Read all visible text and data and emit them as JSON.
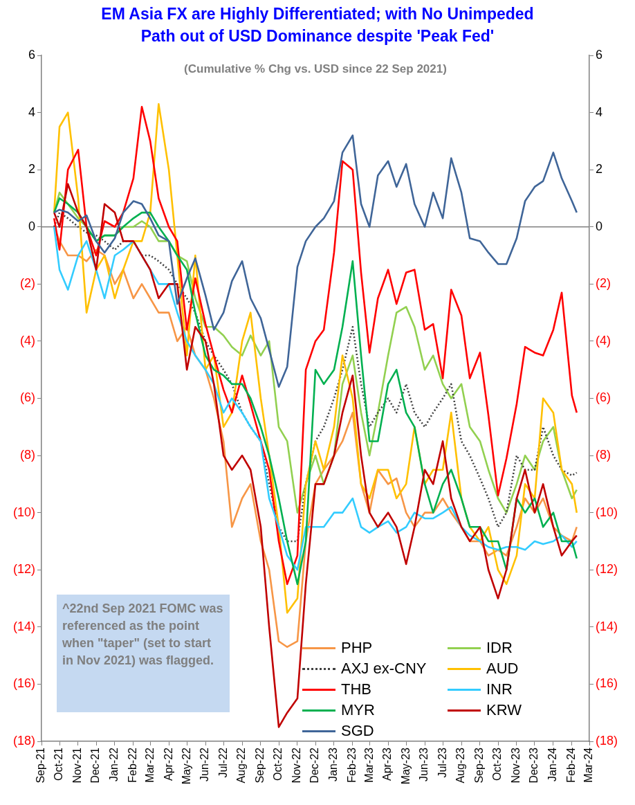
{
  "chart_data": {
    "type": "line",
    "title": "EM Asia FX are Highly Differentiated; with No Unimpeded Path out of USD Dominance despite 'Peak Fed'",
    "subtitle": "(Cumulative % Chg vs. USD since 22 Sep 2021)",
    "annotations": [
      "^22nd Sep 2021 FOMC was referenced as the point when \"taper\" (set to start in Nov 2021) was flagged."
    ],
    "marker": "none",
    "grid": false,
    "legend": "bottom right",
    "xlim": [
      "2021-09-01",
      "2024-03-01"
    ],
    "xticks": [
      {
        "value": "2021-09-01",
        "label": "Sep-21"
      },
      {
        "value": "2021-10-01",
        "label": "Oct-21"
      },
      {
        "value": "2021-11-01",
        "label": "Nov-21"
      },
      {
        "value": "2021-12-01",
        "label": "Dec-21"
      },
      {
        "value": "2022-01-01",
        "label": "Jan-22"
      },
      {
        "value": "2022-02-01",
        "label": "Feb-22"
      },
      {
        "value": "2022-03-01",
        "label": "Mar-22"
      },
      {
        "value": "2022-04-01",
        "label": "Apr-22"
      },
      {
        "value": "2022-05-01",
        "label": "May-22"
      },
      {
        "value": "2022-06-01",
        "label": "Jun-22"
      },
      {
        "value": "2022-07-01",
        "label": "Jul-22"
      },
      {
        "value": "2022-08-01",
        "label": "Aug-22"
      },
      {
        "value": "2022-09-01",
        "label": "Sep-22"
      },
      {
        "value": "2022-10-01",
        "label": "Oct-22"
      },
      {
        "value": "2022-11-01",
        "label": "Nov-22"
      },
      {
        "value": "2022-12-01",
        "label": "Dec-22"
      },
      {
        "value": "2023-01-01",
        "label": "Jan-23"
      },
      {
        "value": "2023-02-01",
        "label": "Feb-23"
      },
      {
        "value": "2023-03-01",
        "label": "Mar-23"
      },
      {
        "value": "2023-04-01",
        "label": "Apr-23"
      },
      {
        "value": "2023-05-01",
        "label": "May-23"
      },
      {
        "value": "2023-06-01",
        "label": "Jun-23"
      },
      {
        "value": "2023-07-01",
        "label": "Jul-23"
      },
      {
        "value": "2023-08-01",
        "label": "Aug-23"
      },
      {
        "value": "2023-09-01",
        "label": "Sep-23"
      },
      {
        "value": "2023-10-01",
        "label": "Oct-23"
      },
      {
        "value": "2023-11-01",
        "label": "Nov-23"
      },
      {
        "value": "2023-12-01",
        "label": "Dec-23"
      },
      {
        "value": "2024-01-01",
        "label": "Jan-24"
      },
      {
        "value": "2024-02-01",
        "label": "Feb-24"
      },
      {
        "value": "2024-03-01",
        "label": "Mar-24"
      }
    ],
    "ylim": [
      -18,
      6
    ],
    "yticks": [
      6,
      4,
      2,
      0,
      {
        "value": -2,
        "label": "(2)"
      },
      {
        "value": -4,
        "label": "(4)"
      },
      {
        "value": -6,
        "label": "(6)"
      },
      {
        "value": -8,
        "label": "(8)"
      },
      {
        "value": -10,
        "label": "(10)"
      },
      {
        "value": -12,
        "label": "(12)"
      },
      {
        "value": -14,
        "label": "(14)"
      },
      {
        "value": -16,
        "label": "(16)"
      },
      {
        "value": -18,
        "label": "(18)"
      }
    ],
    "y2lim": [
      -18,
      6
    ],
    "y2ticks": [
      6,
      4,
      2,
      0,
      {
        "value": -2,
        "label": "(2)"
      },
      {
        "value": -4,
        "label": "(4)"
      },
      {
        "value": -6,
        "label": "(6)"
      },
      {
        "value": -8,
        "label": "(8)"
      },
      {
        "value": -10,
        "label": "(10)"
      },
      {
        "value": -12,
        "label": "(12)"
      },
      {
        "value": -14,
        "label": "(14)"
      },
      {
        "value": -16,
        "label": "(16)"
      },
      {
        "value": -18,
        "label": "(18)"
      }
    ],
    "ref_lines": [
      {
        "axis": "y",
        "value": 0,
        "color": "#808080"
      }
    ],
    "x": [
      "2021-09-22",
      "2021-10-01",
      "2021-10-15",
      "2021-11-01",
      "2021-11-15",
      "2021-12-01",
      "2021-12-15",
      "2022-01-01",
      "2022-01-15",
      "2022-02-01",
      "2022-02-15",
      "2022-03-01",
      "2022-03-15",
      "2022-04-01",
      "2022-04-15",
      "2022-05-01",
      "2022-05-15",
      "2022-06-01",
      "2022-06-15",
      "2022-07-01",
      "2022-07-15",
      "2022-08-01",
      "2022-08-15",
      "2022-09-01",
      "2022-09-15",
      "2022-10-01",
      "2022-10-15",
      "2022-11-01",
      "2022-11-15",
      "2022-12-01",
      "2022-12-15",
      "2023-01-01",
      "2023-01-15",
      "2023-02-01",
      "2023-02-15",
      "2023-03-01",
      "2023-03-15",
      "2023-04-01",
      "2023-04-15",
      "2023-05-01",
      "2023-05-15",
      "2023-06-01",
      "2023-06-15",
      "2023-07-01",
      "2023-07-15",
      "2023-08-01",
      "2023-08-15",
      "2023-09-01",
      "2023-09-15",
      "2023-10-01",
      "2023-10-15",
      "2023-11-01",
      "2023-11-15",
      "2023-12-01",
      "2023-12-15",
      "2024-01-01",
      "2024-01-15",
      "2024-02-01",
      "2024-02-09"
    ],
    "series": [
      {
        "name": "PHP",
        "color": "#f79646",
        "values": [
          0,
          -0.5,
          -1.0,
          -1.0,
          -1.2,
          -0.8,
          -1.0,
          -2.0,
          -1.5,
          -2.5,
          -2.0,
          -2.5,
          -3.0,
          -3.0,
          -4.0,
          -3.5,
          -4.5,
          -5.0,
          -6.0,
          -7.5,
          -10.5,
          -9.5,
          -9.0,
          -11.0,
          -12.0,
          -14.5,
          -14.7,
          -14.5,
          -11.0,
          -9.0,
          -8.5,
          -8.0,
          -7.5,
          -6.5,
          -9.0,
          -10.0,
          -8.5,
          -9.0,
          -8.8,
          -10.0,
          -10.5,
          -10.0,
          -10.0,
          -9.5,
          -10.0,
          -10.5,
          -11.0,
          -11.0,
          -11.5,
          -11.3,
          -11.5,
          -10.5,
          -9.5,
          -10.0,
          -9.5,
          -10.5,
          -10.8,
          -11.0,
          -10.5
        ]
      },
      {
        "name": "IDR",
        "color": "#92d050",
        "values": [
          0.5,
          1.2,
          0.8,
          0.3,
          0,
          -0.5,
          -0.3,
          -0.3,
          0,
          0,
          0.2,
          0,
          -0.5,
          -0.5,
          -1.0,
          -1.2,
          -2.5,
          -3.5,
          -3.5,
          -3.8,
          -4.2,
          -4.5,
          -3.8,
          -4.5,
          -4.0,
          -7.0,
          -7.5,
          -10.0,
          -9.0,
          -8.0,
          -9.0,
          -8.0,
          -5.5,
          -4.5,
          -6.5,
          -8.0,
          -6.5,
          -4.5,
          -3.0,
          -2.8,
          -3.5,
          -5.0,
          -4.5,
          -5.5,
          -6.0,
          -5.5,
          -7.0,
          -7.5,
          -8.5,
          -9.5,
          -10.0,
          -9.0,
          -8.0,
          -8.5,
          -7.5,
          -7.0,
          -8.5,
          -9.5,
          -9.2
        ]
      },
      {
        "name": "AXJ ex-CNY",
        "color": "#404040",
        "line_style": "dotted",
        "values": [
          0,
          0.5,
          0.3,
          0,
          -0.2,
          -0.3,
          -0.5,
          -0.8,
          -0.5,
          -0.5,
          -1.0,
          -1.0,
          -1.2,
          -1.5,
          -2.0,
          -2.5,
          -3.0,
          -4.0,
          -4.5,
          -5.0,
          -5.5,
          -6.5,
          -7.0,
          -7.5,
          -9.0,
          -10.5,
          -11.0,
          -11.0,
          -9.0,
          -7.5,
          -7.0,
          -6.0,
          -5.0,
          -3.5,
          -5.5,
          -7.0,
          -6.5,
          -6.0,
          -6.5,
          -5.5,
          -6.5,
          -7.0,
          -6.5,
          -6.0,
          -5.5,
          -7.5,
          -8.0,
          -8.8,
          -9.5,
          -10.5,
          -10.0,
          -8.0,
          -8.5,
          -8.5,
          -7.0,
          -8.0,
          -8.5,
          -8.7,
          -8.6
        ]
      },
      {
        "name": "AUD",
        "color": "#ffc000",
        "values": [
          0.5,
          3.5,
          4.0,
          1.0,
          -3.0,
          -1.5,
          -1.0,
          -2.5,
          -1.5,
          -0.5,
          -0.5,
          0.5,
          4.3,
          2.0,
          -1.0,
          -4.5,
          -1.0,
          -5.0,
          -4.5,
          -7.0,
          -6.5,
          -4.0,
          -3.0,
          -6.0,
          -8.0,
          -10.5,
          -13.5,
          -13.0,
          -9.0,
          -7.5,
          -8.5,
          -7.0,
          -4.5,
          -6.0,
          -9.0,
          -9.5,
          -8.5,
          -8.5,
          -9.5,
          -9.0,
          -7.0,
          -9.0,
          -8.5,
          -8.5,
          -6.5,
          -9.5,
          -10.5,
          -11.0,
          -10.5,
          -12.0,
          -12.5,
          -11.5,
          -9.0,
          -9.5,
          -6.0,
          -6.5,
          -8.5,
          -9.0,
          -10.0
        ]
      },
      {
        "name": "THB",
        "color": "#ff0000",
        "values": [
          0.3,
          -0.8,
          2.0,
          2.7,
          0.0,
          -1.0,
          0.2,
          0,
          0.5,
          1.7,
          4.2,
          3.0,
          1.0,
          0,
          -0.5,
          -3.6,
          -1.8,
          -3.4,
          -4.5,
          -5.7,
          -6.5,
          -5.2,
          -6.2,
          -7.5,
          -8.5,
          -11.0,
          -12.5,
          -11.5,
          -5.0,
          -4.0,
          -3.6,
          -0.9,
          2.3,
          2.0,
          -1.6,
          -4.4,
          -2.5,
          -1.5,
          -2.7,
          -1.6,
          -1.5,
          -3.6,
          -3.4,
          -5.3,
          -2.2,
          -3.1,
          -5.3,
          -4.4,
          -6.6,
          -9.4,
          -8.1,
          -6.2,
          -4.2,
          -4.4,
          -4.5,
          -3.6,
          -2.3,
          -5.9,
          -6.5
        ]
      },
      {
        "name": "INR",
        "color": "#33ccff",
        "values": [
          0,
          -1.5,
          -2.2,
          -1.0,
          -0.5,
          -1.5,
          -2.5,
          -1.0,
          -0.8,
          -0.5,
          -1.0,
          -1.5,
          -2.0,
          -2.0,
          -3.0,
          -4.0,
          -4.5,
          -5.0,
          -5.5,
          -6.5,
          -6.0,
          -6.5,
          -7.0,
          -7.5,
          -9.5,
          -10.5,
          -11.5,
          -12.0,
          -10.5,
          -10.5,
          -10.5,
          -10.0,
          -10.0,
          -9.5,
          -10.5,
          -10.7,
          -10.5,
          -10.3,
          -10.7,
          -10.5,
          -10.0,
          -10.2,
          -10.2,
          -10.0,
          -9.8,
          -10.5,
          -10.8,
          -11.0,
          -11.2,
          -11.3,
          -11.2,
          -11.2,
          -11.3,
          -11.0,
          -11.1,
          -11.0,
          -10.8,
          -11.2,
          -11.0
        ]
      },
      {
        "name": "MYR",
        "color": "#00b050",
        "values": [
          0.5,
          1.0,
          0.8,
          0.5,
          0,
          -0.5,
          -0.3,
          -0.3,
          0,
          0.3,
          0.5,
          0.5,
          0,
          -0.5,
          -1.0,
          -1.5,
          -3.0,
          -4.5,
          -5.0,
          -5.2,
          -5.5,
          -5.5,
          -6.0,
          -7.0,
          -8.0,
          -9.5,
          -11.0,
          -12.5,
          -11.0,
          -5.0,
          -5.5,
          -5.0,
          -3.5,
          -1.2,
          -4.5,
          -7.5,
          -7.5,
          -5.5,
          -5.0,
          -6.5,
          -7.0,
          -9.0,
          -10.0,
          -9.0,
          -8.5,
          -9.5,
          -10.5,
          -10.5,
          -11.0,
          -11.0,
          -12.0,
          -9.5,
          -10.0,
          -9.5,
          -10.5,
          -10.0,
          -11.0,
          -11.0,
          -11.6
        ]
      },
      {
        "name": "KRW",
        "color": "#c00000",
        "values": [
          0.5,
          0,
          1.5,
          0.5,
          0,
          -1.5,
          0.8,
          0.5,
          -0.5,
          -0.5,
          -1.0,
          -1.5,
          -2.5,
          -2.0,
          -2.0,
          -5.0,
          -3.5,
          -4.0,
          -5.5,
          -8.0,
          -8.5,
          -8.0,
          -8.5,
          -10.5,
          -14.0,
          -17.5,
          -17.0,
          -16.5,
          -12.5,
          -9.0,
          -9.0,
          -8.0,
          -6.5,
          -5.2,
          -8.0,
          -10.0,
          -10.5,
          -10.0,
          -10.5,
          -11.8,
          -10.5,
          -8.5,
          -9.0,
          -7.5,
          -9.5,
          -10.5,
          -11.0,
          -10.5,
          -12.0,
          -13.0,
          -12.0,
          -9.5,
          -8.5,
          -10.0,
          -9.0,
          -10.5,
          -11.5,
          -11.0,
          -10.8
        ]
      },
      {
        "name": "SGD",
        "color": "#3f6598",
        "values": [
          0.5,
          0.6,
          0.5,
          0.2,
          0.4,
          -0.5,
          -0.9,
          -0.4,
          0.5,
          0.9,
          0.8,
          0.3,
          -0.3,
          -0.5,
          -2.7,
          -1.8,
          -1.1,
          -2.4,
          -3.6,
          -3.0,
          -1.9,
          -1.2,
          -2.5,
          -3.2,
          -4.3,
          -5.6,
          -4.9,
          -1.4,
          -0.5,
          0,
          0.3,
          0.9,
          2.6,
          3.2,
          0.8,
          0,
          1.8,
          2.3,
          1.4,
          2.2,
          0.8,
          0,
          1.2,
          0.3,
          2.4,
          1.2,
          -0.4,
          -0.5,
          -0.9,
          -1.3,
          -1.3,
          -0.4,
          0.9,
          1.4,
          1.6,
          2.6,
          1.7,
          0.9,
          0.5
        ]
      }
    ]
  }
}
